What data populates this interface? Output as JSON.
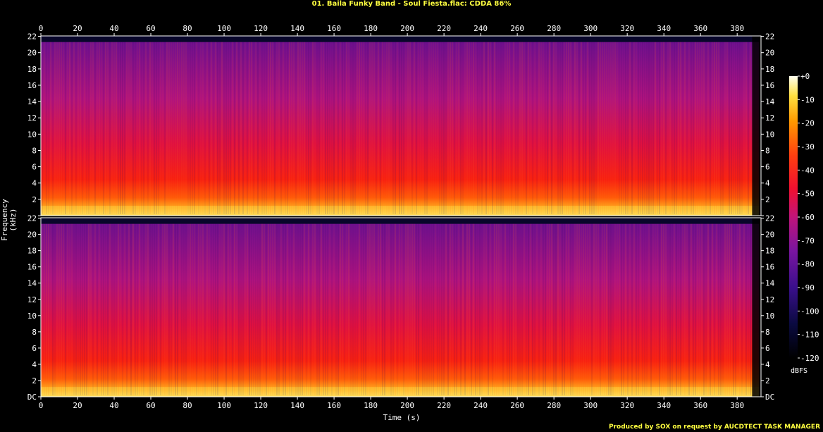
{
  "title": "01. Baila Funky Band - Soul Fiesta.flac: CDDA 86%",
  "credit": "Produced by SOX on request by AUCDTECT TASK MANAGER",
  "colors": {
    "title_text": "#ffff40",
    "axis": "#ffffff",
    "background": "#000000"
  },
  "chart_data": {
    "type": "heatmap",
    "title": "01. Baila Funky Band - Soul Fiesta.flac: CDDA 86%",
    "xlabel": "Time (s)",
    "ylabel": "Frequency (kHz)",
    "xlim": [
      0,
      393
    ],
    "ylim": [
      0,
      22.05
    ],
    "x_ticks": [
      0,
      20,
      40,
      60,
      80,
      100,
      120,
      140,
      160,
      180,
      200,
      220,
      240,
      260,
      280,
      300,
      320,
      340,
      360,
      380
    ],
    "y_ticks": [
      "DC",
      "2",
      "4",
      "6",
      "8",
      "10",
      "12",
      "14",
      "16",
      "18",
      "20",
      "22"
    ],
    "y_tick_values": [
      0,
      2,
      4,
      6,
      8,
      10,
      12,
      14,
      16,
      18,
      20,
      22
    ],
    "channels": [
      {
        "name": "Channel 1"
      },
      {
        "name": "Channel 2"
      }
    ],
    "audio_duration_s": 392,
    "colorbar": {
      "label": "dBFS",
      "ticks": [
        "+0",
        "-10",
        "-20",
        "-30",
        "-40",
        "-50",
        "-60",
        "-70",
        "-80",
        "-90",
        "-100",
        "-110",
        "-120"
      ],
      "range": [
        -120,
        0
      ]
    }
  }
}
